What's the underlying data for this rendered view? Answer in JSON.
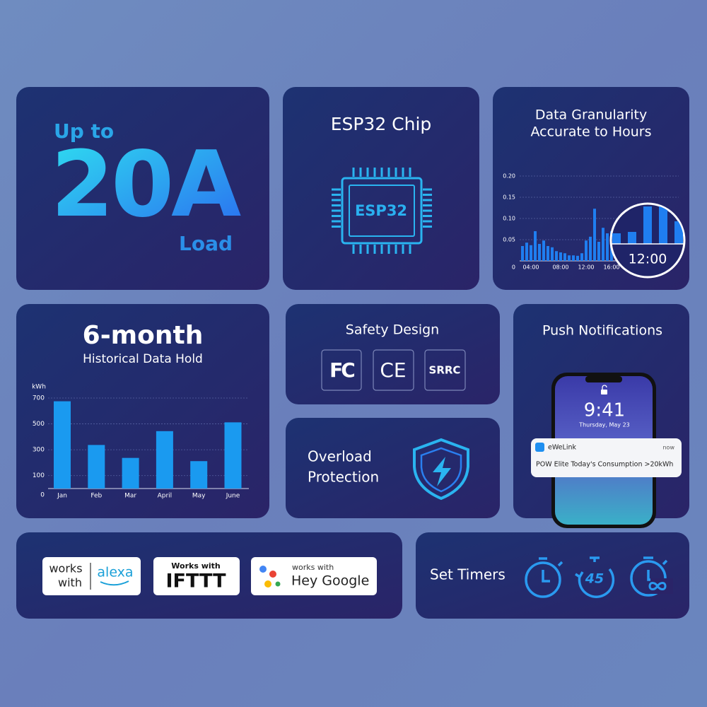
{
  "load_card": {
    "prefix": "Up to",
    "value": "20A",
    "suffix": "Load"
  },
  "chip_card": {
    "title": "ESP32 Chip",
    "chip_label": "ESP32"
  },
  "chart_data": [
    {
      "type": "bar",
      "title": "Data Granularity",
      "subtitle": "Accurate to Hours",
      "categories": [
        null,
        null,
        "04:00",
        null,
        null,
        null,
        null,
        null,
        null,
        "08:00",
        null,
        null,
        null,
        null,
        null,
        "12:00",
        null,
        null,
        null,
        null,
        null,
        "16:00"
      ],
      "values": [
        0.035,
        0.043,
        0.037,
        0.07,
        0.04,
        0.048,
        0.035,
        0.032,
        0.023,
        0.02,
        0.018,
        0.013,
        0.013,
        0.012,
        0.018,
        0.048,
        0.057,
        0.123,
        0.045,
        0.078,
        0.065,
        0.07
      ],
      "color": "#1f7ef0",
      "ylim": [
        0,
        0.2
      ],
      "yticks": [
        0,
        0.05,
        {
          "value": 0.1,
          "label": "0.10"
        },
        0.15,
        {
          "value": 0.2,
          "label": "0.20"
        }
      ],
      "grid": true,
      "annotation": "12:00"
    },
    {
      "type": "bar",
      "title": "6-month",
      "subtitle": "Historical Data Hold",
      "ylabel": "kWh",
      "categories": [
        "Jan",
        "Feb",
        "Mar",
        "April",
        "May",
        "June"
      ],
      "values": [
        675,
        337,
        237,
        444,
        212,
        512
      ],
      "color": "#1a9af0",
      "ylim": [
        0,
        700
      ],
      "yticks": [
        0,
        100,
        300,
        500,
        700
      ],
      "grid": true
    }
  ],
  "safety_card": {
    "title": "Safety Design",
    "certifications": [
      "FC",
      "CE",
      "SRRC"
    ]
  },
  "overload_card": {
    "title": [
      "Overload",
      "Protection"
    ]
  },
  "notification_card": {
    "title": "Push Notifications",
    "time": "9:41",
    "date": "Thursday, May 23",
    "notification": {
      "app": "eWeLink",
      "when": "now",
      "message": "POW Elite Today's Consumption >20kWh"
    }
  },
  "compatibility_card": {
    "alexa": {
      "lead": [
        "works",
        "with"
      ],
      "brand": "alexa"
    },
    "ifttt": {
      "lead": "Works with",
      "brand": "IFTTT"
    },
    "google": {
      "lead": "works with",
      "brand": "Hey Google"
    }
  },
  "timer_card": {
    "title": "Set Timers",
    "countdown": "45"
  }
}
